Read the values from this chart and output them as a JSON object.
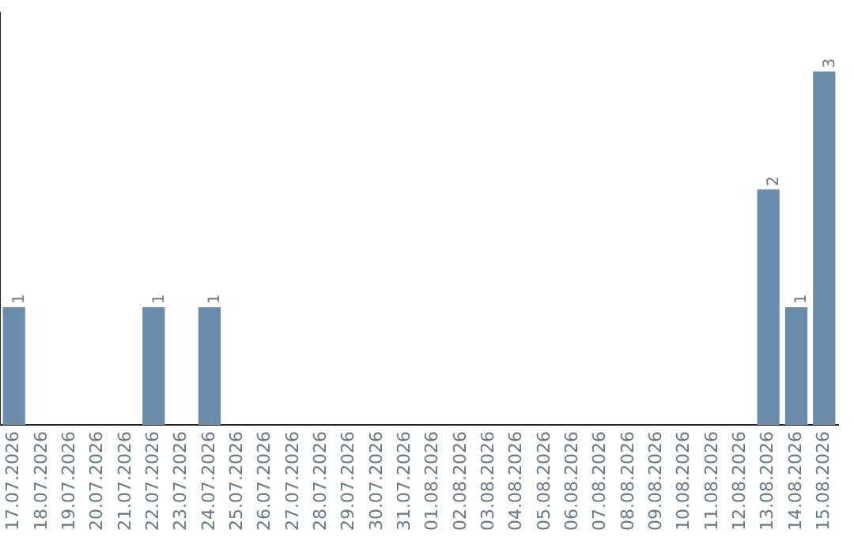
{
  "chart_data": {
    "type": "bar",
    "categories": [
      "17.07.2026",
      "18.07.2026",
      "19.07.2026",
      "20.07.2026",
      "21.07.2026",
      "22.07.2026",
      "23.07.2026",
      "24.07.2026",
      "25.07.2026",
      "26.07.2026",
      "27.07.2026",
      "28.07.2026",
      "29.07.2026",
      "30.07.2026",
      "31.07.2026",
      "01.08.2026",
      "02.08.2026",
      "03.08.2026",
      "04.08.2026",
      "05.08.2026",
      "06.08.2026",
      "07.08.2026",
      "08.08.2026",
      "09.08.2026",
      "10.08.2026",
      "11.08.2026",
      "12.08.2026",
      "13.08.2026",
      "14.08.2026",
      "15.08.2026"
    ],
    "values": [
      1,
      0,
      0,
      0,
      0,
      1,
      0,
      1,
      0,
      0,
      0,
      0,
      0,
      0,
      0,
      0,
      0,
      0,
      0,
      0,
      0,
      0,
      0,
      0,
      0,
      0,
      0,
      2,
      1,
      3
    ],
    "value_labels": [
      "1",
      null,
      null,
      null,
      null,
      "1",
      null,
      "1",
      null,
      null,
      null,
      null,
      null,
      null,
      null,
      null,
      null,
      null,
      null,
      null,
      null,
      null,
      null,
      null,
      null,
      null,
      null,
      "2",
      "1",
      "3"
    ],
    "color": "#6b8caa",
    "grid": false,
    "legend": false,
    "tick_labels": "x"
  }
}
